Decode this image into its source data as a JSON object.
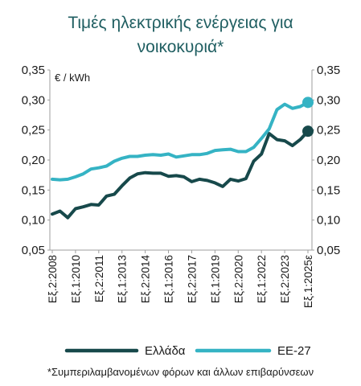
{
  "title_line1": "Τιμές ηλεκτρικής ενέργειας για",
  "title_line2": "νοικοκυριά*",
  "footnote": "*Συμπεριλαμβανομένων φόρων και άλλων επιβαρύνσεων",
  "colors": {
    "greece": "#17494b",
    "eu27": "#35b3c4",
    "title": "#1f5e61",
    "axis": "#9e9e9e"
  },
  "chart_data": {
    "type": "line",
    "unit_label": "€ / kWh",
    "ylim": [
      0.05,
      0.35
    ],
    "y_ticks": [
      "0,05",
      "0,10",
      "0,15",
      "0,20",
      "0,25",
      "0,30",
      "0,35"
    ],
    "y_tick_values": [
      0.05,
      0.1,
      0.15,
      0.2,
      0.25,
      0.3,
      0.35
    ],
    "x_tick_labels": [
      "Εξ.2:2008",
      "Εξ.1:2010",
      "Εξ.2:2011",
      "Εξ.1:2013",
      "Εξ.2:2014",
      "Εξ.1:2016",
      "Εξ.2:2017",
      "Εξ.1:2019",
      "Εξ.2:2020",
      "Εξ.1:2022",
      "Εξ.2:2023",
      "Εξ.1:2025ε"
    ],
    "x_tick_indices": [
      0,
      3,
      6,
      9,
      12,
      15,
      18,
      21,
      24,
      27,
      30,
      33
    ],
    "categories": [
      "Εξ.2:2008",
      "Εξ.1:2009",
      "Εξ.2:2009",
      "Εξ.1:2010",
      "Εξ.2:2010",
      "Εξ.1:2011",
      "Εξ.2:2011",
      "Εξ.1:2012",
      "Εξ.2:2012",
      "Εξ.1:2013",
      "Εξ.2:2013",
      "Εξ.1:2014",
      "Εξ.2:2014",
      "Εξ.1:2015",
      "Εξ.2:2015",
      "Εξ.1:2016",
      "Εξ.2:2016",
      "Εξ.1:2017",
      "Εξ.2:2017",
      "Εξ.1:2018",
      "Εξ.2:2018",
      "Εξ.1:2019",
      "Εξ.2:2019",
      "Εξ.1:2020",
      "Εξ.2:2020",
      "Εξ.1:2021",
      "Εξ.2:2021",
      "Εξ.1:2022",
      "Εξ.2:2022",
      "Εξ.1:2023",
      "Εξ.2:2023",
      "Εξ.1:2024",
      "Εξ.2:2024",
      "Εξ.1:2025ε"
    ],
    "series": [
      {
        "name": "Ελλάδα",
        "values": [
          0.11,
          0.115,
          0.104,
          0.119,
          0.122,
          0.126,
          0.125,
          0.14,
          0.143,
          0.157,
          0.17,
          0.177,
          0.179,
          0.178,
          0.178,
          0.173,
          0.174,
          0.172,
          0.164,
          0.168,
          0.166,
          0.162,
          0.156,
          0.168,
          0.165,
          0.169,
          0.198,
          0.21,
          0.244,
          0.234,
          0.232,
          0.224,
          0.234,
          0.248
        ]
      },
      {
        "name": "ΕΕ-27",
        "values": [
          0.168,
          0.167,
          0.168,
          0.172,
          0.177,
          0.185,
          0.187,
          0.19,
          0.198,
          0.203,
          0.206,
          0.206,
          0.208,
          0.209,
          0.208,
          0.21,
          0.205,
          0.207,
          0.209,
          0.209,
          0.211,
          0.216,
          0.217,
          0.218,
          0.214,
          0.214,
          0.221,
          0.236,
          0.252,
          0.284,
          0.293,
          0.286,
          0.289,
          0.296
        ]
      }
    ],
    "grid": false,
    "legend": "bottom"
  }
}
